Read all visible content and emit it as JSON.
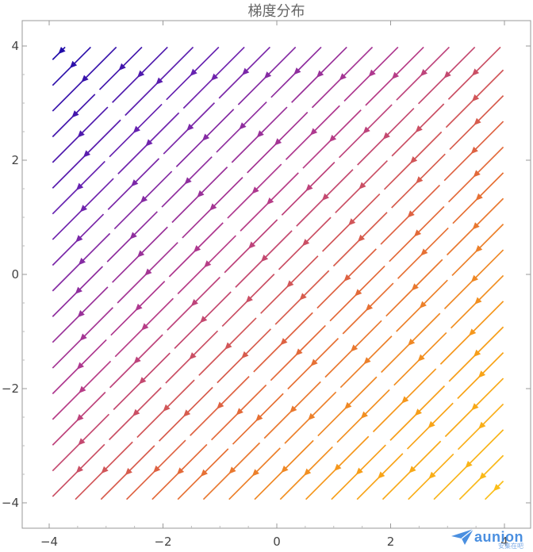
{
  "chart_data": {
    "type": "vector_field",
    "title": "梯度分布",
    "xlim": [
      -4,
      4
    ],
    "ylim": [
      -4,
      4
    ],
    "x_ticks": [
      -4,
      -2,
      0,
      2,
      4
    ],
    "y_ticks": [
      -4,
      -2,
      0,
      2,
      4
    ],
    "x_tick_labels": [
      "−4",
      "−2",
      "0",
      "2",
      "4"
    ],
    "y_tick_labels": [
      "−4",
      "−2",
      "0",
      "2",
      "4"
    ],
    "field": {
      "direction": [
        -1,
        -1
      ],
      "grid_spacing": 0.45,
      "color_variable": "x - y",
      "color_range": [
        -8,
        8
      ],
      "colormap": [
        "#1a0aa8",
        "#6a22b0",
        "#b43a8c",
        "#e2663a",
        "#f79d18",
        "#fbc318"
      ]
    },
    "frame": true,
    "grid": false
  },
  "watermark": {
    "text": "aunion",
    "sub": "安集在吧"
  }
}
